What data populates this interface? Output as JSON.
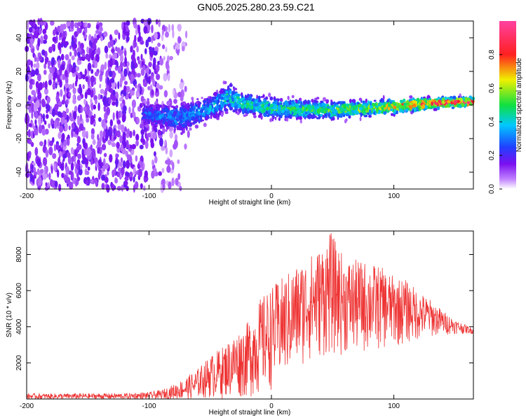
{
  "title": "GN05.2025.280.23.59.C21",
  "colors": {
    "snr_line": "#ee3333",
    "axis": "#000000",
    "background": "#ffffff"
  },
  "chart_data": [
    {
      "type": "heatmap",
      "title": "GN05.2025.280.23.59.C21",
      "xlabel": "Height of straight line (km)",
      "ylabel": "Frequency (Hz)",
      "xlim": [
        -200,
        165
      ],
      "ylim": [
        -50,
        50
      ],
      "x_ticks": [
        -200,
        -100,
        0,
        100
      ],
      "y_ticks": [
        -40,
        -20,
        0,
        20,
        40
      ],
      "colorbar": {
        "label": "Normalized spectral amplitude",
        "range": [
          0.0,
          1.0
        ],
        "ticks": [
          "0.0",
          "0.2",
          "0.4",
          "0.6",
          "0.8"
        ],
        "tick_values": [
          0.0,
          0.2,
          0.4,
          0.6,
          0.8
        ],
        "colormap": "rainbow (white-purple-blue-cyan-green-yellow-red-pink)"
      },
      "noise_region_x": [
        -200,
        -75
      ],
      "signal_band": [
        {
          "x": -105,
          "center_hz": -5,
          "halfwidth_hz": 8,
          "amp": 0.3
        },
        {
          "x": -75,
          "center_hz": -8,
          "halfwidth_hz": 10,
          "amp": 0.35
        },
        {
          "x": -50,
          "center_hz": -2,
          "halfwidth_hz": 8,
          "amp": 0.4
        },
        {
          "x": -35,
          "center_hz": 5,
          "halfwidth_hz": 10,
          "amp": 0.45
        },
        {
          "x": -25,
          "center_hz": 1,
          "halfwidth_hz": 7,
          "amp": 0.5
        },
        {
          "x": 0,
          "center_hz": -2,
          "halfwidth_hz": 7,
          "amp": 0.5
        },
        {
          "x": 50,
          "center_hz": -3,
          "halfwidth_hz": 6,
          "amp": 0.55
        },
        {
          "x": 100,
          "center_hz": -1,
          "halfwidth_hz": 5,
          "amp": 0.7
        },
        {
          "x": 130,
          "center_hz": 1,
          "halfwidth_hz": 4,
          "amp": 0.85
        },
        {
          "x": 165,
          "center_hz": 2,
          "halfwidth_hz": 3,
          "amp": 0.95
        }
      ]
    },
    {
      "type": "line",
      "xlabel": "Height of straight line (km)",
      "ylabel": "SNR (10 * v/v)",
      "xlim": [
        -200,
        165
      ],
      "ylim": [
        0,
        9300
      ],
      "x_ticks": [
        -200,
        -100,
        0,
        100
      ],
      "y_ticks": [
        2000,
        4000,
        6000,
        8000
      ],
      "series": [
        {
          "name": "SNR",
          "envelope": {
            "x": [
              -200,
              -120,
              -100,
              -90,
              -80,
              -70,
              -60,
              -50,
              -40,
              -30,
              -20,
              -10,
              0,
              10,
              20,
              30,
              40,
              48,
              60,
              70,
              80,
              90,
              100,
              110,
              120,
              130,
              140,
              150,
              165
            ],
            "upper": [
              300,
              320,
              380,
              500,
              800,
              1200,
              1700,
              2400,
              2900,
              3600,
              4200,
              5500,
              6200,
              6800,
              7400,
              7900,
              8400,
              9300,
              7800,
              7700,
              7600,
              7300,
              6800,
              6600,
              6000,
              5500,
              4900,
              4400,
              3900
            ],
            "lower": [
              0,
              0,
              0,
              0,
              0,
              0,
              0,
              0,
              0,
              0,
              0,
              100,
              500,
              1000,
              1500,
              2000,
              2200,
              2300,
              2400,
              2400,
              2500,
              2700,
              2800,
              3000,
              3200,
              3400,
              3500,
              3600,
              3600
            ]
          }
        }
      ]
    }
  ]
}
